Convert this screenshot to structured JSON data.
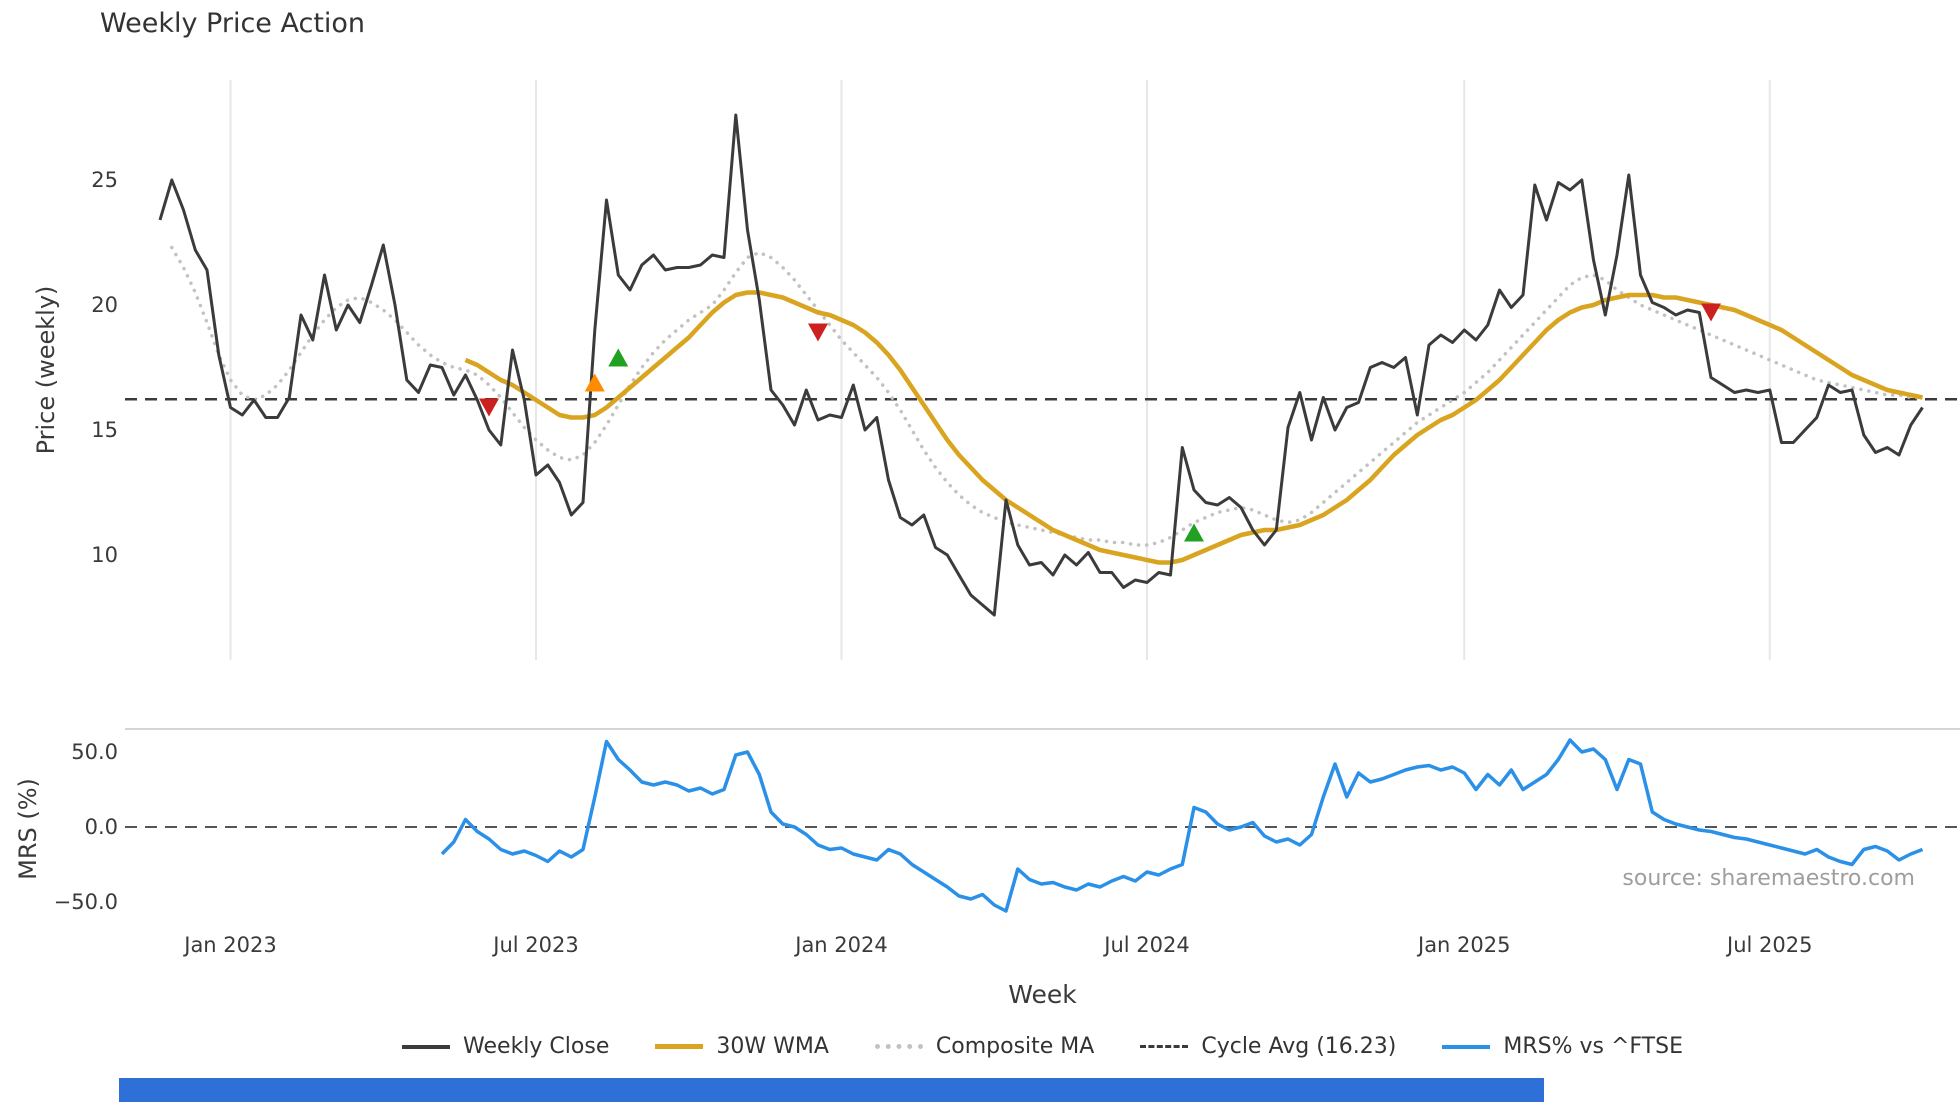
{
  "title": "Weekly Price Action",
  "source": "source: sharemaestro.com",
  "colors": {
    "weekly_close": "#3b3b3b",
    "wma": "#d9a521",
    "composite": "#c2c2c2",
    "cycle_avg": "#3b3b3b",
    "mrs": "#2b90e8",
    "grid": "#e7e7e7",
    "buy": "#22a022",
    "sell": "#cc2020",
    "warn": "#ff8c00"
  },
  "axes": {
    "price": {
      "label": "Price (weekly)",
      "tick_values": [
        25,
        20,
        15,
        10
      ],
      "tick_labels": [
        "25",
        "20",
        "15",
        "10"
      ]
    },
    "mrs": {
      "label": "MRS (%)",
      "tick_values": [
        50,
        0,
        -50
      ],
      "tick_labels": [
        "50.0",
        "0.0",
        "−50.0"
      ]
    },
    "x": {
      "label": "Week",
      "ticks": [
        {
          "week": 6,
          "label": "Jan 2023"
        },
        {
          "week": 32,
          "label": "Jul 2023"
        },
        {
          "week": 58,
          "label": "Jan 2024"
        },
        {
          "week": 84,
          "label": "Jul 2024"
        },
        {
          "week": 111,
          "label": "Jan 2025"
        },
        {
          "week": 137,
          "label": "Jul 2025"
        }
      ]
    }
  },
  "legend": [
    {
      "label": "Weekly Close",
      "swatch": "solid-dark"
    },
    {
      "label": "30W WMA",
      "swatch": "solid-gold"
    },
    {
      "label": "Composite MA",
      "swatch": "dotted-gray"
    },
    {
      "label": "Cycle Avg (16.23)",
      "swatch": "dashed-dark"
    },
    {
      "label": "MRS% vs ^FTSE",
      "swatch": "solid-blue"
    }
  ],
  "chart_data": [
    {
      "type": "line",
      "panel": "price",
      "title": "Weekly Price Action",
      "xlabel": "Week",
      "ylabel": "Price (weekly)",
      "x_unit": "week_index",
      "ylim": [
        5.8,
        29.0
      ],
      "grid": "vertical-only",
      "cycle_avg": 16.23,
      "series": [
        {
          "name": "Weekly Close",
          "start_week": 0,
          "values": [
            23.4,
            25.0,
            23.8,
            22.2,
            21.4,
            18.0,
            15.9,
            15.6,
            16.2,
            15.5,
            15.5,
            16.3,
            19.6,
            18.6,
            21.2,
            19.0,
            20.0,
            19.3,
            20.8,
            22.4,
            20.0,
            17.0,
            16.5,
            17.6,
            17.5,
            16.4,
            17.2,
            16.2,
            15.0,
            14.4,
            18.2,
            16.2,
            13.2,
            13.6,
            12.9,
            11.6,
            12.1,
            19.0,
            24.2,
            21.2,
            20.6,
            21.6,
            22.0,
            21.4,
            21.5,
            21.5,
            21.6,
            22.0,
            21.9,
            27.6,
            23.0,
            20.2,
            16.6,
            16.0,
            15.2,
            16.6,
            15.4,
            15.6,
            15.5,
            16.8,
            15.0,
            15.5,
            13.0,
            11.5,
            11.2,
            11.6,
            10.3,
            10.0,
            9.2,
            8.4,
            8.0,
            7.6,
            12.2,
            10.4,
            9.6,
            9.7,
            9.2,
            10.0,
            9.6,
            10.1,
            9.3,
            9.3,
            8.7,
            9.0,
            8.9,
            9.3,
            9.2,
            14.3,
            12.6,
            12.1,
            12.0,
            12.3,
            11.9,
            11.0,
            10.4,
            11.0,
            15.1,
            16.5,
            14.6,
            16.3,
            15.0,
            15.9,
            16.1,
            17.5,
            17.7,
            17.5,
            17.9,
            15.6,
            18.4,
            18.8,
            18.5,
            19.0,
            18.6,
            19.2,
            20.6,
            19.9,
            20.4,
            24.8,
            23.4,
            24.9,
            24.6,
            25.0,
            21.8,
            19.6,
            22.0,
            25.2,
            21.2,
            20.1,
            19.9,
            19.6,
            19.8,
            19.7,
            17.1,
            16.8,
            16.5,
            16.6,
            16.5,
            16.6,
            14.5,
            14.5,
            15.0,
            15.5,
            16.8,
            16.5,
            16.6,
            14.8,
            14.1,
            14.3,
            14.0,
            15.2,
            15.9
          ]
        },
        {
          "name": "30W WMA",
          "start_week": 26,
          "values": [
            17.8,
            17.6,
            17.3,
            17.0,
            16.8,
            16.5,
            16.2,
            15.9,
            15.6,
            15.5,
            15.5,
            15.6,
            15.9,
            16.3,
            16.7,
            17.1,
            17.5,
            17.9,
            18.3,
            18.7,
            19.2,
            19.7,
            20.1,
            20.4,
            20.5,
            20.5,
            20.4,
            20.3,
            20.1,
            19.9,
            19.7,
            19.6,
            19.4,
            19.2,
            18.9,
            18.5,
            18.0,
            17.4,
            16.7,
            16.0,
            15.3,
            14.6,
            14.0,
            13.5,
            13.0,
            12.6,
            12.2,
            11.9,
            11.6,
            11.3,
            11.0,
            10.8,
            10.6,
            10.4,
            10.2,
            10.1,
            10.0,
            9.9,
            9.8,
            9.7,
            9.7,
            9.8,
            10.0,
            10.2,
            10.4,
            10.6,
            10.8,
            10.9,
            11.0,
            11.0,
            11.1,
            11.2,
            11.4,
            11.6,
            11.9,
            12.2,
            12.6,
            13.0,
            13.5,
            14.0,
            14.4,
            14.8,
            15.1,
            15.4,
            15.6,
            15.9,
            16.2,
            16.6,
            17.0,
            17.5,
            18.0,
            18.5,
            19.0,
            19.4,
            19.7,
            19.9,
            20.0,
            20.2,
            20.3,
            20.4,
            20.4,
            20.4,
            20.3,
            20.3,
            20.2,
            20.1,
            20.0,
            19.9,
            19.8,
            19.6,
            19.4,
            19.2,
            19.0,
            18.7,
            18.4,
            18.1,
            17.8,
            17.5,
            17.2,
            17.0,
            16.8,
            16.6,
            16.5,
            16.4,
            16.3
          ]
        },
        {
          "name": "Composite MA",
          "start_week": 1,
          "values": [
            22.3,
            21.5,
            20.5,
            19.3,
            18.0,
            17.0,
            16.4,
            16.2,
            16.4,
            16.8,
            17.4,
            18.1,
            18.8,
            19.4,
            19.9,
            20.2,
            20.3,
            20.1,
            19.8,
            19.4,
            18.9,
            18.4,
            18.0,
            17.7,
            17.5,
            17.4,
            17.2,
            16.8,
            16.3,
            15.7,
            15.1,
            14.6,
            14.2,
            13.9,
            13.8,
            14.0,
            14.5,
            15.2,
            16.0,
            16.8,
            17.5,
            18.1,
            18.6,
            19.0,
            19.4,
            19.7,
            20.0,
            20.6,
            21.3,
            21.9,
            22.1,
            21.9,
            21.5,
            21.0,
            20.4,
            19.8,
            19.2,
            18.6,
            18.1,
            17.6,
            17.1,
            16.5,
            15.8,
            15.0,
            14.2,
            13.5,
            12.9,
            12.4,
            12.0,
            11.7,
            11.5,
            11.3,
            11.2,
            11.1,
            11.0,
            10.9,
            10.8,
            10.7,
            10.6,
            10.6,
            10.5,
            10.5,
            10.4,
            10.4,
            10.5,
            10.7,
            11.0,
            11.3,
            11.5,
            11.7,
            11.8,
            11.9,
            11.8,
            11.6,
            11.4,
            11.3,
            11.4,
            11.7,
            12.1,
            12.5,
            12.9,
            13.3,
            13.7,
            14.1,
            14.5,
            14.9,
            15.3,
            15.6,
            15.9,
            16.2,
            16.5,
            16.9,
            17.3,
            17.8,
            18.3,
            18.8,
            19.3,
            19.8,
            20.3,
            20.8,
            21.1,
            21.2,
            21.0,
            20.6,
            20.3,
            20.0,
            19.8,
            19.6,
            19.4,
            19.2,
            19.0,
            18.8,
            18.6,
            18.4,
            18.2,
            18.0,
            17.8,
            17.6,
            17.4,
            17.2,
            17.0,
            16.9,
            16.8,
            16.7,
            16.6,
            16.5,
            16.4,
            16.4,
            16.3,
            16.3
          ]
        }
      ],
      "markers": [
        {
          "week": 28,
          "price": 15.9,
          "type": "sell",
          "shape": "triangle-down"
        },
        {
          "week": 37,
          "price": 16.9,
          "type": "warn",
          "shape": "triangle-up"
        },
        {
          "week": 39,
          "price": 17.9,
          "type": "buy",
          "shape": "triangle-up"
        },
        {
          "week": 56,
          "price": 18.9,
          "type": "sell",
          "shape": "triangle-down"
        },
        {
          "week": 88,
          "price": 10.9,
          "type": "buy",
          "shape": "triangle-up"
        },
        {
          "week": 132,
          "price": 19.7,
          "type": "sell",
          "shape": "triangle-down"
        }
      ]
    },
    {
      "type": "line",
      "panel": "mrs",
      "ylabel": "MRS (%)",
      "ylim": [
        -65,
        65
      ],
      "zero_line": 0,
      "series": [
        {
          "name": "MRS% vs ^FTSE",
          "start_week": 24,
          "values": [
            -18,
            -10,
            5,
            -3,
            -8,
            -15,
            -18,
            -16,
            -19,
            -23,
            -16,
            -20,
            -15,
            20,
            57,
            45,
            38,
            30,
            28,
            30,
            28,
            24,
            26,
            22,
            25,
            48,
            50,
            35,
            10,
            2,
            0,
            -5,
            -12,
            -15,
            -14,
            -18,
            -20,
            -22,
            -15,
            -18,
            -25,
            -30,
            -35,
            -40,
            -46,
            -48,
            -45,
            -52,
            -56,
            -28,
            -35,
            -38,
            -37,
            -40,
            -42,
            -38,
            -40,
            -36,
            -33,
            -36,
            -30,
            -32,
            -28,
            -25,
            13,
            10,
            2,
            -2,
            0,
            3,
            -6,
            -10,
            -8,
            -12,
            -5,
            20,
            42,
            20,
            36,
            30,
            32,
            35,
            38,
            40,
            41,
            38,
            40,
            36,
            25,
            35,
            28,
            38,
            25,
            30,
            35,
            45,
            58,
            50,
            52,
            45,
            25,
            45,
            42,
            10,
            5,
            2,
            0,
            -2,
            -3,
            -5,
            -7,
            -8,
            -10,
            -12,
            -14,
            -16,
            -18,
            -15,
            -20,
            -23,
            -25,
            -15,
            -13,
            -16,
            -22,
            -18,
            -15
          ]
        }
      ]
    }
  ]
}
